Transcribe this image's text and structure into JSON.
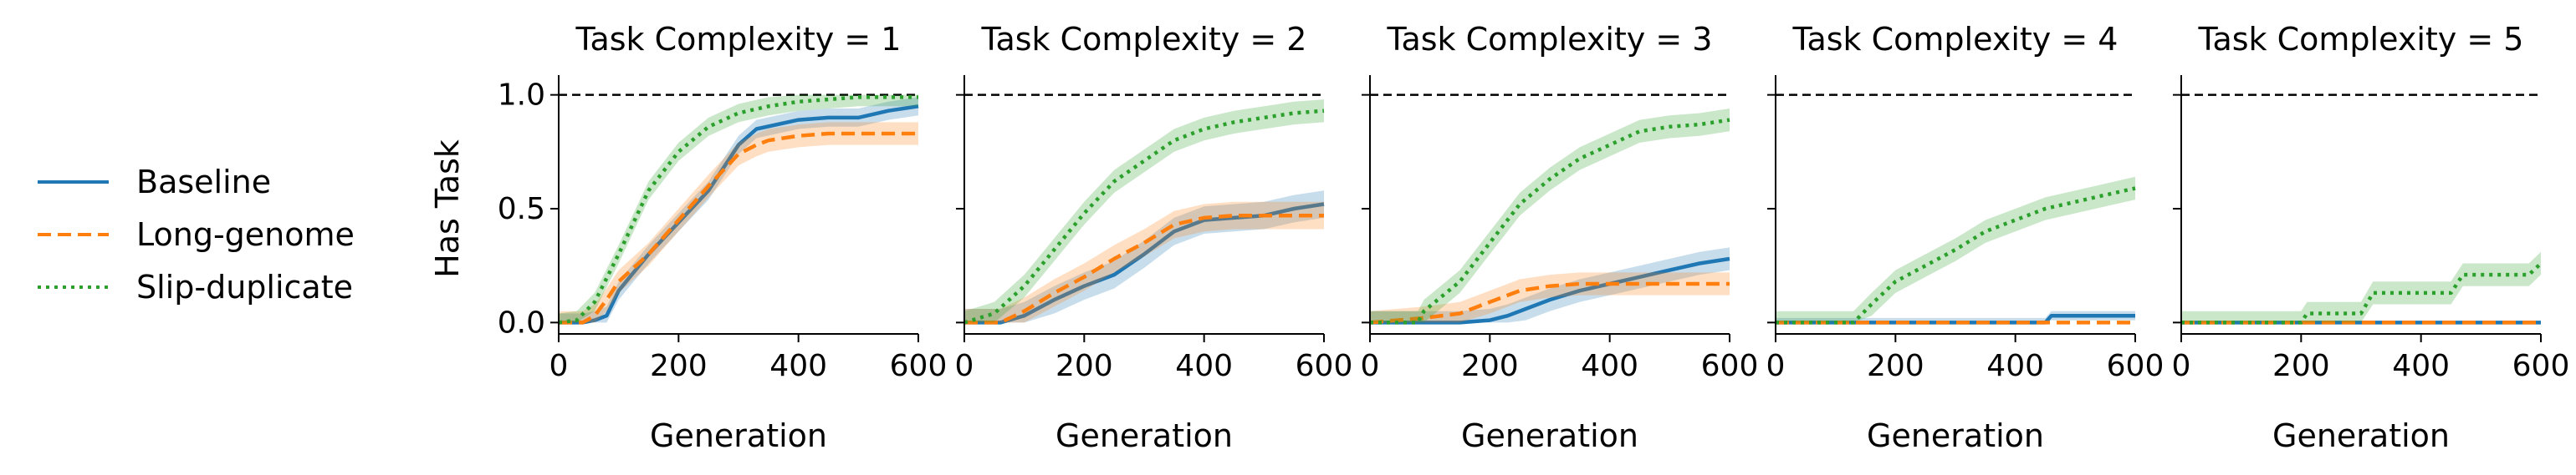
{
  "colors": {
    "baseline": "#1f77b4",
    "long_genome": "#ff7f0e",
    "slip_duplicate": "#2ca02c",
    "reference": "#000000"
  },
  "legend": {
    "placement": "left",
    "entries": [
      {
        "label": "Baseline",
        "style": "solid"
      },
      {
        "label": "Long-genome",
        "style": "dashed"
      },
      {
        "label": "Slip-duplicate",
        "style": "dotted"
      }
    ]
  },
  "chart_data": [
    {
      "type": "line",
      "title": "Task Complexity = 1",
      "xlabel": "Generation",
      "ylabel": "Has Task",
      "xlim": [
        0,
        600
      ],
      "ylim": [
        -0.05,
        1.05
      ],
      "xticks": [
        "0",
        "200",
        "400",
        "600"
      ],
      "yticks": [
        "0.0",
        "0.5",
        "1.0"
      ],
      "reference_line": 1.0,
      "grid": false,
      "series": [
        {
          "name": "Baseline",
          "x": [
            0,
            40,
            60,
            80,
            100,
            150,
            200,
            250,
            300,
            330,
            400,
            450,
            500,
            550,
            600
          ],
          "y": [
            0,
            0,
            0.01,
            0.03,
            0.14,
            0.3,
            0.44,
            0.58,
            0.78,
            0.85,
            0.89,
            0.9,
            0.9,
            0.93,
            0.95
          ],
          "band": 0.04
        },
        {
          "name": "Long-genome",
          "x": [
            0,
            40,
            60,
            80,
            100,
            150,
            200,
            250,
            300,
            330,
            350,
            400,
            450,
            500,
            600
          ],
          "y": [
            0,
            0,
            0.03,
            0.1,
            0.18,
            0.3,
            0.45,
            0.6,
            0.74,
            0.78,
            0.8,
            0.82,
            0.83,
            0.83,
            0.83
          ],
          "band": 0.05
        },
        {
          "name": "Slip-duplicate",
          "x": [
            0,
            30,
            60,
            100,
            150,
            200,
            250,
            300,
            350,
            400,
            450,
            500,
            600
          ],
          "y": [
            0,
            0.01,
            0.09,
            0.3,
            0.58,
            0.75,
            0.86,
            0.92,
            0.95,
            0.97,
            0.98,
            0.99,
            0.99
          ],
          "band": 0.04
        }
      ]
    },
    {
      "type": "line",
      "title": "Task Complexity = 2",
      "xlabel": "Generation",
      "ylabel": "",
      "xlim": [
        0,
        600
      ],
      "ylim": [
        -0.05,
        1.05
      ],
      "xticks": [
        "0",
        "200",
        "400",
        "600"
      ],
      "yticks": [
        "0.0",
        "0.5",
        "1.0"
      ],
      "reference_line": 1.0,
      "grid": false,
      "series": [
        {
          "name": "Baseline",
          "x": [
            0,
            60,
            100,
            150,
            200,
            250,
            300,
            350,
            400,
            450,
            500,
            550,
            600
          ],
          "y": [
            0,
            0,
            0.03,
            0.1,
            0.16,
            0.21,
            0.3,
            0.4,
            0.45,
            0.46,
            0.47,
            0.5,
            0.52
          ],
          "band": 0.06
        },
        {
          "name": "Long-genome",
          "x": [
            0,
            60,
            100,
            150,
            200,
            250,
            300,
            350,
            400,
            450,
            500,
            600
          ],
          "y": [
            0,
            0,
            0.05,
            0.13,
            0.2,
            0.28,
            0.35,
            0.43,
            0.46,
            0.47,
            0.47,
            0.47
          ],
          "band": 0.06
        },
        {
          "name": "Slip-duplicate",
          "x": [
            0,
            50,
            100,
            150,
            200,
            250,
            300,
            350,
            400,
            450,
            500,
            550,
            600
          ],
          "y": [
            0,
            0.04,
            0.16,
            0.32,
            0.48,
            0.62,
            0.71,
            0.8,
            0.85,
            0.88,
            0.9,
            0.92,
            0.93
          ],
          "band": 0.05
        }
      ]
    },
    {
      "type": "line",
      "title": "Task Complexity = 3",
      "xlabel": "Generation",
      "ylabel": "",
      "xlim": [
        0,
        600
      ],
      "ylim": [
        -0.05,
        1.05
      ],
      "xticks": [
        "0",
        "200",
        "400",
        "600"
      ],
      "yticks": [
        "0.0",
        "0.5",
        "1.0"
      ],
      "reference_line": 1.0,
      "grid": false,
      "series": [
        {
          "name": "Baseline",
          "x": [
            0,
            100,
            150,
            200,
            230,
            260,
            300,
            350,
            400,
            450,
            500,
            550,
            600
          ],
          "y": [
            0,
            0,
            0,
            0.01,
            0.03,
            0.06,
            0.1,
            0.14,
            0.17,
            0.2,
            0.23,
            0.26,
            0.28
          ],
          "band": 0.05
        },
        {
          "name": "Long-genome",
          "x": [
            0,
            90,
            150,
            200,
            250,
            300,
            350,
            400,
            600
          ],
          "y": [
            0,
            0.02,
            0.04,
            0.09,
            0.14,
            0.16,
            0.17,
            0.17,
            0.17
          ],
          "band": 0.05
        },
        {
          "name": "Slip-duplicate",
          "x": [
            0,
            80,
            90,
            150,
            200,
            250,
            300,
            350,
            400,
            450,
            500,
            550,
            600
          ],
          "y": [
            0,
            0,
            0.05,
            0.18,
            0.35,
            0.52,
            0.63,
            0.72,
            0.78,
            0.84,
            0.86,
            0.87,
            0.89
          ],
          "band": 0.05
        }
      ]
    },
    {
      "type": "line",
      "title": "Task Complexity = 4",
      "xlabel": "Generation",
      "ylabel": "",
      "xlim": [
        0,
        600
      ],
      "ylim": [
        -0.05,
        1.05
      ],
      "xticks": [
        "0",
        "200",
        "400",
        "600"
      ],
      "yticks": [
        "0.0",
        "0.5",
        "1.0"
      ],
      "reference_line": 1.0,
      "grid": false,
      "series": [
        {
          "name": "Baseline",
          "x": [
            0,
            450,
            460,
            600
          ],
          "y": [
            0,
            0,
            0.03,
            0.03
          ],
          "band": 0.02
        },
        {
          "name": "Long-genome",
          "x": [
            0,
            600
          ],
          "y": [
            0,
            0
          ],
          "band": 0.0
        },
        {
          "name": "Slip-duplicate",
          "x": [
            0,
            130,
            160,
            200,
            250,
            300,
            350,
            400,
            450,
            500,
            550,
            600
          ],
          "y": [
            0,
            0,
            0.08,
            0.18,
            0.25,
            0.32,
            0.4,
            0.45,
            0.5,
            0.53,
            0.56,
            0.59
          ],
          "band": 0.05
        }
      ]
    },
    {
      "type": "line",
      "title": "Task Complexity = 5",
      "xlabel": "Generation",
      "ylabel": "",
      "xlim": [
        0,
        600
      ],
      "ylim": [
        -0.05,
        1.05
      ],
      "xticks": [
        "0",
        "200",
        "400",
        "600"
      ],
      "yticks": [
        "0.0",
        "0.5",
        "1.0"
      ],
      "reference_line": 1.0,
      "grid": false,
      "series": [
        {
          "name": "Baseline",
          "x": [
            0,
            600
          ],
          "y": [
            0,
            0
          ],
          "band": 0.0
        },
        {
          "name": "Long-genome",
          "x": [
            0,
            600
          ],
          "y": [
            0,
            0
          ],
          "band": 0.0
        },
        {
          "name": "Slip-duplicate",
          "x": [
            0,
            200,
            210,
            300,
            320,
            450,
            470,
            580,
            600
          ],
          "y": [
            0,
            0,
            0.04,
            0.04,
            0.13,
            0.13,
            0.21,
            0.21,
            0.26
          ],
          "band": 0.05
        }
      ]
    }
  ]
}
